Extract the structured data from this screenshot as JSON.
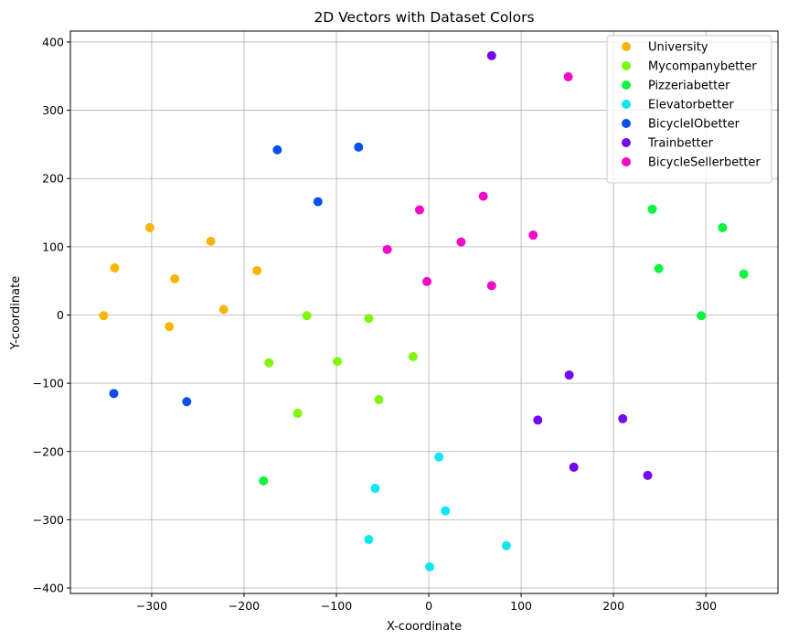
{
  "chart_data": {
    "type": "scatter",
    "title": "2D Vectors with Dataset Colors",
    "xlabel": "X-coordinate",
    "ylabel": "Y-coordinate",
    "xlim": [
      -388,
      378
    ],
    "ylim": [
      -408,
      416
    ],
    "xticks": [
      -300,
      -200,
      -100,
      0,
      100,
      200,
      300
    ],
    "yticks": [
      -400,
      -300,
      -200,
      -100,
      0,
      100,
      200,
      300,
      400
    ],
    "grid": true,
    "legend_position": "top-right",
    "series": [
      {
        "name": "University",
        "color": "#f8b509",
        "points": [
          [
            -352,
            -1
          ],
          [
            -340,
            69
          ],
          [
            -302,
            128
          ],
          [
            -281,
            -17
          ],
          [
            -275,
            53
          ],
          [
            -236,
            108
          ],
          [
            -222,
            8
          ],
          [
            -186,
            65
          ]
        ]
      },
      {
        "name": "Mycompanybetter",
        "color": "#82f50e",
        "points": [
          [
            -173,
            -70
          ],
          [
            -142,
            -144
          ],
          [
            -132,
            -1
          ],
          [
            -99,
            -68
          ],
          [
            -65,
            -5
          ],
          [
            -54,
            -124
          ],
          [
            -17,
            -61
          ]
        ]
      },
      {
        "name": "Pizzeriabetter",
        "color": "#0ef53e",
        "points": [
          [
            -179,
            -243
          ],
          [
            242,
            155
          ],
          [
            249,
            68
          ],
          [
            295,
            -1
          ],
          [
            318,
            128
          ],
          [
            341,
            60
          ]
        ]
      },
      {
        "name": "Elevatorbetter",
        "color": "#0ee7ef",
        "points": [
          [
            -58,
            -254
          ],
          [
            -65,
            -329
          ],
          [
            1,
            -369
          ],
          [
            11,
            -208
          ],
          [
            18,
            -287
          ],
          [
            84,
            -338
          ]
        ]
      },
      {
        "name": "BicycleIObetter",
        "color": "#0a4ff0",
        "points": [
          [
            -341,
            -115
          ],
          [
            -262,
            -127
          ],
          [
            -164,
            242
          ],
          [
            -120,
            166
          ],
          [
            -76,
            246
          ]
        ]
      },
      {
        "name": "Trainbetter",
        "color": "#7309ee",
        "points": [
          [
            68,
            380
          ],
          [
            118,
            -154
          ],
          [
            152,
            -88
          ],
          [
            157,
            -223
          ],
          [
            210,
            -152
          ],
          [
            237,
            -235
          ]
        ]
      },
      {
        "name": "BicycleSellerbetter",
        "color": "#f20ac6",
        "points": [
          [
            -45,
            96
          ],
          [
            -10,
            154
          ],
          [
            -2,
            49
          ],
          [
            35,
            107
          ],
          [
            59,
            174
          ],
          [
            68,
            43
          ],
          [
            113,
            117
          ],
          [
            151,
            349
          ]
        ]
      }
    ]
  }
}
